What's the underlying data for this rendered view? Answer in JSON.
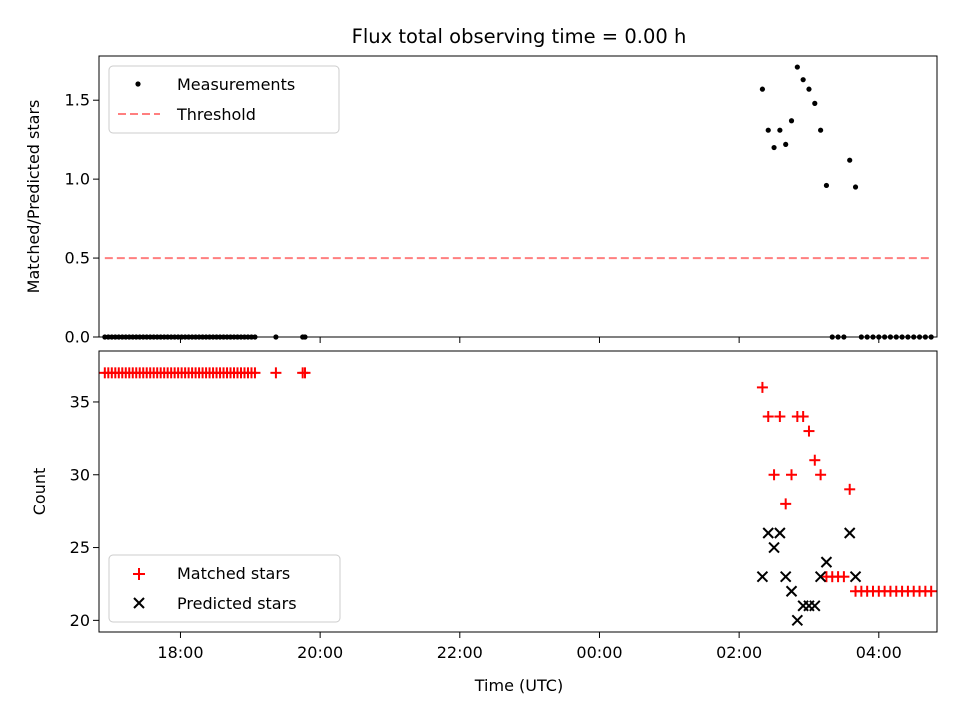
{
  "chart_data": {
    "title": "Flux total observing time = 0.00 h",
    "xlabel": "Time (UTC)",
    "xaxis": {
      "type": "time",
      "lim": [
        "16:50",
        "04:50"
      ],
      "ticks": [
        "18:00",
        "20:00",
        "22:00",
        "00:00",
        "02:00",
        "04:00"
      ]
    },
    "panels": [
      {
        "id": "ratio",
        "type": "scatter",
        "ylabel": "Matched/Predicted stars",
        "ylim": [
          0,
          1.78
        ],
        "yticks": [
          "0.0",
          "0.5",
          "1.0",
          "1.5"
        ],
        "legend_position": "upper-left",
        "legend": [
          "Measurements",
          "Threshold"
        ],
        "series": [
          {
            "name": "Measurements",
            "marker": "dot",
            "color": "#000000",
            "x": [
              "16:55",
              "16:58",
              "17:01",
              "17:04",
              "17:07",
              "17:10",
              "17:13",
              "17:16",
              "17:19",
              "17:22",
              "17:25",
              "17:28",
              "17:31",
              "17:34",
              "17:37",
              "17:40",
              "17:43",
              "17:46",
              "17:49",
              "17:52",
              "17:55",
              "17:58",
              "18:01",
              "18:04",
              "18:07",
              "18:10",
              "18:13",
              "18:16",
              "18:19",
              "18:22",
              "18:25",
              "18:28",
              "18:31",
              "18:34",
              "18:37",
              "18:40",
              "18:43",
              "18:46",
              "18:49",
              "18:52",
              "18:55",
              "18:58",
              "19:01",
              "19:04",
              "19:22",
              "19:45",
              "19:47",
              "02:20",
              "02:25",
              "02:30",
              "02:35",
              "02:40",
              "02:45",
              "02:50",
              "02:55",
              "03:00",
              "03:05",
              "03:10",
              "03:15",
              "03:20",
              "03:25",
              "03:30",
              "03:35",
              "03:40",
              "03:45",
              "03:50",
              "03:55",
              "04:00",
              "04:05",
              "04:10",
              "04:15",
              "04:20",
              "04:25",
              "04:30",
              "04:35",
              "04:40",
              "04:45"
            ],
            "y": [
              0,
              0,
              0,
              0,
              0,
              0,
              0,
              0,
              0,
              0,
              0,
              0,
              0,
              0,
              0,
              0,
              0,
              0,
              0,
              0,
              0,
              0,
              0,
              0,
              0,
              0,
              0,
              0,
              0,
              0,
              0,
              0,
              0,
              0,
              0,
              0,
              0,
              0,
              0,
              0,
              0,
              0,
              0,
              0,
              0,
              0,
              0,
              1.57,
              1.31,
              1.2,
              1.31,
              1.22,
              1.37,
              1.71,
              1.63,
              1.57,
              1.48,
              1.31,
              0.96,
              0,
              0,
              0,
              1.12,
              0.95,
              0,
              0,
              0,
              0,
              0,
              0,
              0,
              0,
              0,
              0,
              0,
              0,
              0
            ]
          },
          {
            "name": "Threshold",
            "marker": "dashed-line",
            "color": "#ff7f7f",
            "x": [
              "16:55",
              "04:45"
            ],
            "y": [
              0.5,
              0.5
            ]
          }
        ]
      },
      {
        "id": "count",
        "type": "scatter",
        "ylabel": "Count",
        "ylim": [
          19.2,
          38.5
        ],
        "yticks": [
          "20",
          "25",
          "30",
          "35"
        ],
        "legend_position": "lower-left",
        "legend": [
          "Matched stars",
          "Predicted stars"
        ],
        "series": [
          {
            "name": "Matched stars",
            "marker": "plus",
            "color": "#ff0000",
            "x": [
              "16:55",
              "16:58",
              "17:01",
              "17:04",
              "17:07",
              "17:10",
              "17:13",
              "17:16",
              "17:19",
              "17:22",
              "17:25",
              "17:28",
              "17:31",
              "17:34",
              "17:37",
              "17:40",
              "17:43",
              "17:46",
              "17:49",
              "17:52",
              "17:55",
              "17:58",
              "18:01",
              "18:04",
              "18:07",
              "18:10",
              "18:13",
              "18:16",
              "18:19",
              "18:22",
              "18:25",
              "18:28",
              "18:31",
              "18:34",
              "18:37",
              "18:40",
              "18:43",
              "18:46",
              "18:49",
              "18:52",
              "18:55",
              "18:58",
              "19:01",
              "19:04",
              "19:22",
              "19:45",
              "19:47",
              "02:20",
              "02:25",
              "02:30",
              "02:35",
              "02:40",
              "02:45",
              "02:50",
              "02:55",
              "03:00",
              "03:05",
              "03:10",
              "03:15",
              "03:20",
              "03:25",
              "03:30",
              "03:35",
              "03:40",
              "03:45",
              "03:50",
              "03:55",
              "04:00",
              "04:05",
              "04:10",
              "04:15",
              "04:20",
              "04:25",
              "04:30",
              "04:35",
              "04:40",
              "04:45"
            ],
            "y": [
              37,
              37,
              37,
              37,
              37,
              37,
              37,
              37,
              37,
              37,
              37,
              37,
              37,
              37,
              37,
              37,
              37,
              37,
              37,
              37,
              37,
              37,
              37,
              37,
              37,
              37,
              37,
              37,
              37,
              37,
              37,
              37,
              37,
              37,
              37,
              37,
              37,
              37,
              37,
              37,
              37,
              37,
              37,
              37,
              37,
              37,
              37,
              36,
              34,
              30,
              34,
              28,
              30,
              34,
              34,
              33,
              31,
              30,
              23,
              23,
              23,
              23,
              29,
              22,
              22,
              22,
              22,
              22,
              22,
              22,
              22,
              22,
              22,
              22,
              22,
              22,
              22
            ]
          },
          {
            "name": "Predicted stars",
            "marker": "x",
            "color": "#000000",
            "x": [
              "02:20",
              "02:25",
              "02:30",
              "02:35",
              "02:40",
              "02:45",
              "02:50",
              "02:55",
              "03:00",
              "03:05",
              "03:10",
              "03:15",
              "03:35",
              "03:40"
            ],
            "y": [
              23,
              26,
              25,
              26,
              23,
              22,
              20,
              21,
              21,
              21,
              23,
              24,
              26,
              23
            ]
          }
        ]
      }
    ]
  }
}
